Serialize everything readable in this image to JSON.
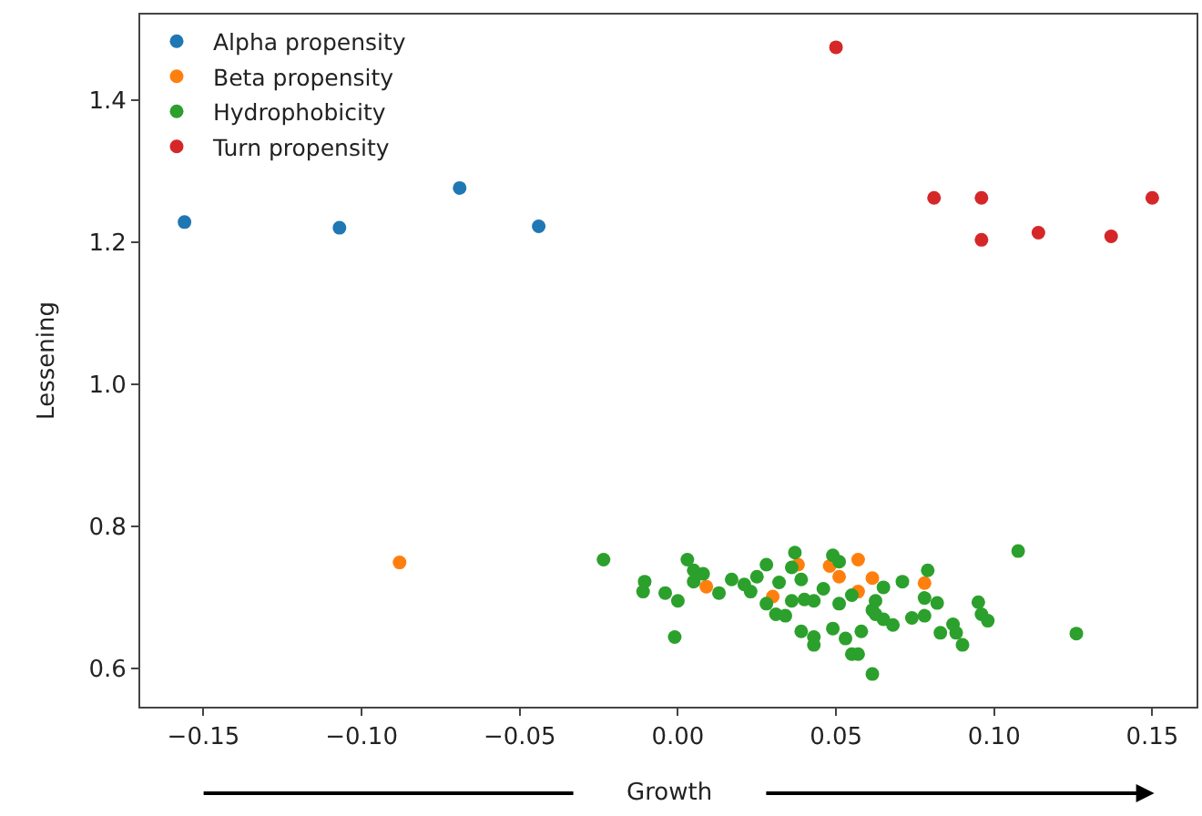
{
  "chart_data": {
    "type": "scatter",
    "xlabel": "Growth",
    "ylabel": "Lessening",
    "xlim": [
      -0.17,
      0.164
    ],
    "xticks": [
      {
        "value": -0.15,
        "label": "−0.15"
      },
      {
        "value": -0.1,
        "label": "−0.10"
      },
      {
        "value": -0.05,
        "label": "−0.05"
      },
      {
        "value": 0,
        "label": "0.00"
      },
      {
        "value": 0.05,
        "label": "0.05"
      },
      {
        "value": 0.1,
        "label": "0.10"
      },
      {
        "value": 0.15,
        "label": "0.15"
      }
    ],
    "ylim": [
      0.546,
      1.52
    ],
    "yticks": [
      {
        "value": 0.6,
        "label": "0.6"
      },
      {
        "value": 0.8,
        "label": "0.8"
      },
      {
        "value": 1.0,
        "label": "1.0"
      },
      {
        "value": 1.2,
        "label": "1.2"
      },
      {
        "value": 1.4,
        "label": "1.4"
      }
    ],
    "legend": "top left",
    "marker": "circle",
    "series": [
      {
        "name": "Alpha propensity",
        "color": "#1f77b4",
        "x": [
          -0.156,
          -0.107,
          -0.069,
          -0.044
        ],
        "values": [
          1.228,
          1.22,
          1.276,
          1.222
        ]
      },
      {
        "name": "Beta propensity",
        "color": "#ff7f0e",
        "x": [
          -0.088,
          0.009,
          0.03,
          0.038,
          0.048,
          0.057,
          0.051,
          0.057,
          0.0615,
          0.078
        ],
        "values": [
          0.749,
          0.715,
          0.701,
          0.746,
          0.744,
          0.753,
          0.729,
          0.708,
          0.727,
          0.72
        ]
      },
      {
        "name": "Hydrophobicity",
        "color": "#2ca02c",
        "x": [
          -0.0235,
          -0.0105,
          -0.011,
          -0.004,
          0.0,
          -0.001,
          0.003,
          0.005,
          0.008,
          0.005,
          0.013,
          0.017,
          0.021,
          0.025,
          0.028,
          0.023,
          0.028,
          0.031,
          0.034,
          0.032,
          0.036,
          0.037,
          0.036,
          0.039,
          0.04,
          0.043,
          0.039,
          0.043,
          0.043,
          0.049,
          0.051,
          0.046,
          0.051,
          0.049,
          0.053,
          0.055,
          0.058,
          0.055,
          0.0615,
          0.0615,
          0.1076,
          0.079,
          0.071,
          0.065,
          0.078,
          0.082,
          0.0625,
          0.0625,
          0.065,
          0.068,
          0.074,
          0.078,
          0.057,
          0.095,
          0.096,
          0.098,
          0.087,
          0.083,
          0.088,
          0.09,
          0.126
        ],
        "values": [
          0.753,
          0.722,
          0.708,
          0.706,
          0.695,
          0.644,
          0.753,
          0.738,
          0.733,
          0.722,
          0.706,
          0.725,
          0.718,
          0.729,
          0.746,
          0.708,
          0.691,
          0.676,
          0.674,
          0.721,
          0.695,
          0.763,
          0.742,
          0.725,
          0.697,
          0.695,
          0.652,
          0.644,
          0.633,
          0.759,
          0.75,
          0.712,
          0.691,
          0.656,
          0.642,
          0.62,
          0.652,
          0.703,
          0.682,
          0.592,
          0.765,
          0.738,
          0.722,
          0.714,
          0.699,
          0.692,
          0.695,
          0.676,
          0.669,
          0.661,
          0.671,
          0.674,
          0.62,
          0.693,
          0.676,
          0.667,
          0.662,
          0.65,
          0.65,
          0.633,
          0.649
        ]
      },
      {
        "name": "Turn propensity",
        "color": "#d62728",
        "x": [
          0.05,
          0.081,
          0.096,
          0.096,
          0.114,
          0.137,
          0.15
        ],
        "values": [
          1.474,
          1.262,
          1.262,
          1.203,
          1.213,
          1.208,
          1.262
        ]
      }
    ]
  }
}
